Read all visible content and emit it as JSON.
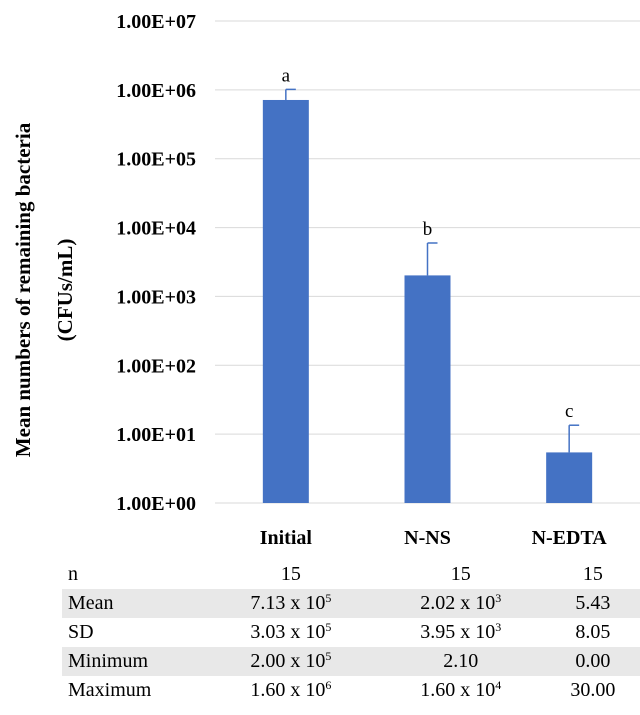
{
  "chart_data": {
    "type": "bar",
    "ylabel_line1": "Mean numbers of remaining bacteria",
    "ylabel_line2": "(CFUs/mL)",
    "yscale": "log",
    "ylim": [
      1,
      10000000
    ],
    "yticks": [
      "1.00E+00",
      "1.00E+01",
      "1.00E+02",
      "1.00E+03",
      "1.00E+04",
      "1.00E+05",
      "1.00E+06",
      "1.00E+07"
    ],
    "categories": [
      "Initial",
      "N-NS",
      "N-EDTA"
    ],
    "values": [
      713000,
      2020,
      5.43
    ],
    "error_upper": [
      1016000,
      5970,
      13.48
    ],
    "letters": [
      "a",
      "b",
      "c"
    ],
    "bar_color": "#4472C4",
    "grid": true
  },
  "table": {
    "rows": [
      {
        "label": "n",
        "shaded": false,
        "cells": [
          {
            "text": "15"
          },
          {
            "text": "15"
          },
          {
            "text": "15"
          }
        ]
      },
      {
        "label": "Mean",
        "shaded": true,
        "cells": [
          {
            "text": "7.13 x 10",
            "sup": "5"
          },
          {
            "text": "2.02 x 10",
            "sup": "3"
          },
          {
            "text": "5.43"
          }
        ]
      },
      {
        "label": "SD",
        "shaded": false,
        "cells": [
          {
            "text": "3.03 x 10",
            "sup": "5"
          },
          {
            "text": "3.95 x 10",
            "sup": "3"
          },
          {
            "text": "8.05"
          }
        ]
      },
      {
        "label": "Minimum",
        "shaded": true,
        "cells": [
          {
            "text": "2.00 x 10",
            "sup": "5"
          },
          {
            "text": "2.10"
          },
          {
            "text": "0.00"
          }
        ]
      },
      {
        "label": "Maximum",
        "shaded": false,
        "cells": [
          {
            "text": "1.60 x 10",
            "sup": "6"
          },
          {
            "text": "1.60 x 10",
            "sup": "4"
          },
          {
            "text": "30.00"
          }
        ]
      }
    ]
  }
}
